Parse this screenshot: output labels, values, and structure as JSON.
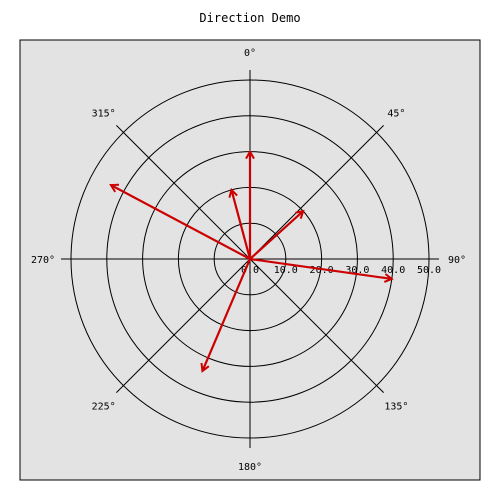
{
  "chart_data": {
    "type": "polar",
    "title": "Direction Demo",
    "radial_range": [
      0,
      50
    ],
    "radial_ticks": [
      "0.0",
      "10.0",
      "20.0",
      "30.0",
      "40.0",
      "50.0"
    ],
    "angle_labels": [
      "0°",
      "45°",
      "90°",
      "135°",
      "180°",
      "225°",
      "270°",
      "315°"
    ],
    "angle_values": [
      0,
      45,
      90,
      135,
      180,
      225,
      270,
      315
    ],
    "angle_zero": "top",
    "angle_direction": "clockwise",
    "grid": true,
    "background": "#e3e3e3",
    "arrow_color": "#cc0000",
    "vectors": [
      {
        "angle": 0,
        "magnitude": 30
      },
      {
        "angle": 345,
        "magnitude": 20
      },
      {
        "angle": 48,
        "magnitude": 20
      },
      {
        "angle": 98,
        "magnitude": 40
      },
      {
        "angle": 203,
        "magnitude": 34
      },
      {
        "angle": 298,
        "magnitude": 44
      }
    ]
  }
}
